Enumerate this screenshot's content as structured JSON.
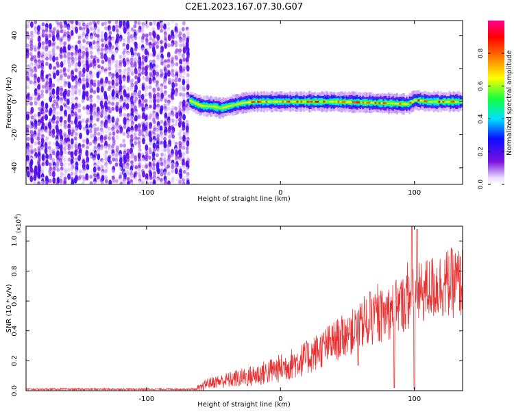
{
  "figure_title": "C2E1.2023.167.07.30.G07",
  "chart_data": [
    {
      "type": "heatmap",
      "title": "",
      "xlabel": "Height of straight line (km)",
      "ylabel": "Frequency (Hz)",
      "xlim": [
        -190,
        136
      ],
      "ylim": [
        -50,
        49
      ],
      "xticks": [
        -100,
        0,
        100
      ],
      "yticks": [
        -40,
        -20,
        0,
        20,
        40
      ],
      "colorbar": {
        "label": "Normalized spectral amplitude",
        "range": [
          0.0,
          1.0
        ],
        "ticks": [
          "0.0",
          "0.2",
          "0.4",
          "0.6",
          "0.8"
        ]
      },
      "regions": [
        {
          "description": "scattered noise",
          "x_range": [
            -190,
            -68
          ],
          "freq_range": [
            -50,
            49
          ],
          "amplitude": [
            0.05,
            0.25
          ]
        },
        {
          "description": "signal line",
          "x_range": [
            -68,
            136
          ],
          "center_freq_hz": 0,
          "amplitude": [
            0.3,
            0.95
          ]
        }
      ],
      "signal_center_points": [
        {
          "x": -68,
          "y": 0.5
        },
        {
          "x": -60,
          "y": -2.5
        },
        {
          "x": -50,
          "y": -3
        },
        {
          "x": -45,
          "y": -4
        },
        {
          "x": -38,
          "y": -2.5
        },
        {
          "x": -30,
          "y": -1
        },
        {
          "x": -20,
          "y": 0
        },
        {
          "x": 0,
          "y": 0
        },
        {
          "x": 40,
          "y": 0
        },
        {
          "x": 60,
          "y": -0.5
        },
        {
          "x": 80,
          "y": -1
        },
        {
          "x": 95,
          "y": -1.5
        },
        {
          "x": 100,
          "y": 1
        },
        {
          "x": 110,
          "y": 0
        },
        {
          "x": 136,
          "y": 0
        }
      ]
    },
    {
      "type": "line",
      "title": "",
      "xlabel": "Height of straight line (km)",
      "ylabel": "SNR (10 * v/v)",
      "y_multiplier": "x10^4",
      "xlim": [
        -190,
        136
      ],
      "ylim": [
        0.0,
        1.1
      ],
      "xticks": [
        -100,
        0,
        100
      ],
      "yticks": [
        "0.0",
        "0.2",
        "0.4",
        "0.6",
        "0.8",
        "1.0"
      ],
      "series_color": "#e83030",
      "trend": [
        {
          "x": -190,
          "y": 0.01
        },
        {
          "x": -60,
          "y": 0.01
        },
        {
          "x": -55,
          "y": 0.05
        },
        {
          "x": -40,
          "y": 0.07
        },
        {
          "x": -20,
          "y": 0.1
        },
        {
          "x": 0,
          "y": 0.15
        },
        {
          "x": 20,
          "y": 0.22
        },
        {
          "x": 40,
          "y": 0.33
        },
        {
          "x": 55,
          "y": 0.4
        },
        {
          "x": 65,
          "y": 0.45
        },
        {
          "x": 80,
          "y": 0.52
        },
        {
          "x": 95,
          "y": 0.6
        },
        {
          "x": 110,
          "y": 0.68
        },
        {
          "x": 125,
          "y": 0.72
        },
        {
          "x": 136,
          "y": 0.72
        }
      ],
      "spikes": [
        {
          "x": 58,
          "y": 0.17
        },
        {
          "x": 67,
          "y": 0.66
        },
        {
          "x": 85,
          "y": 0.02
        },
        {
          "x": 98,
          "y": 1.15
        },
        {
          "x": 100,
          "y": 0.01
        },
        {
          "x": 102,
          "y": 1.08
        }
      ]
    }
  ]
}
